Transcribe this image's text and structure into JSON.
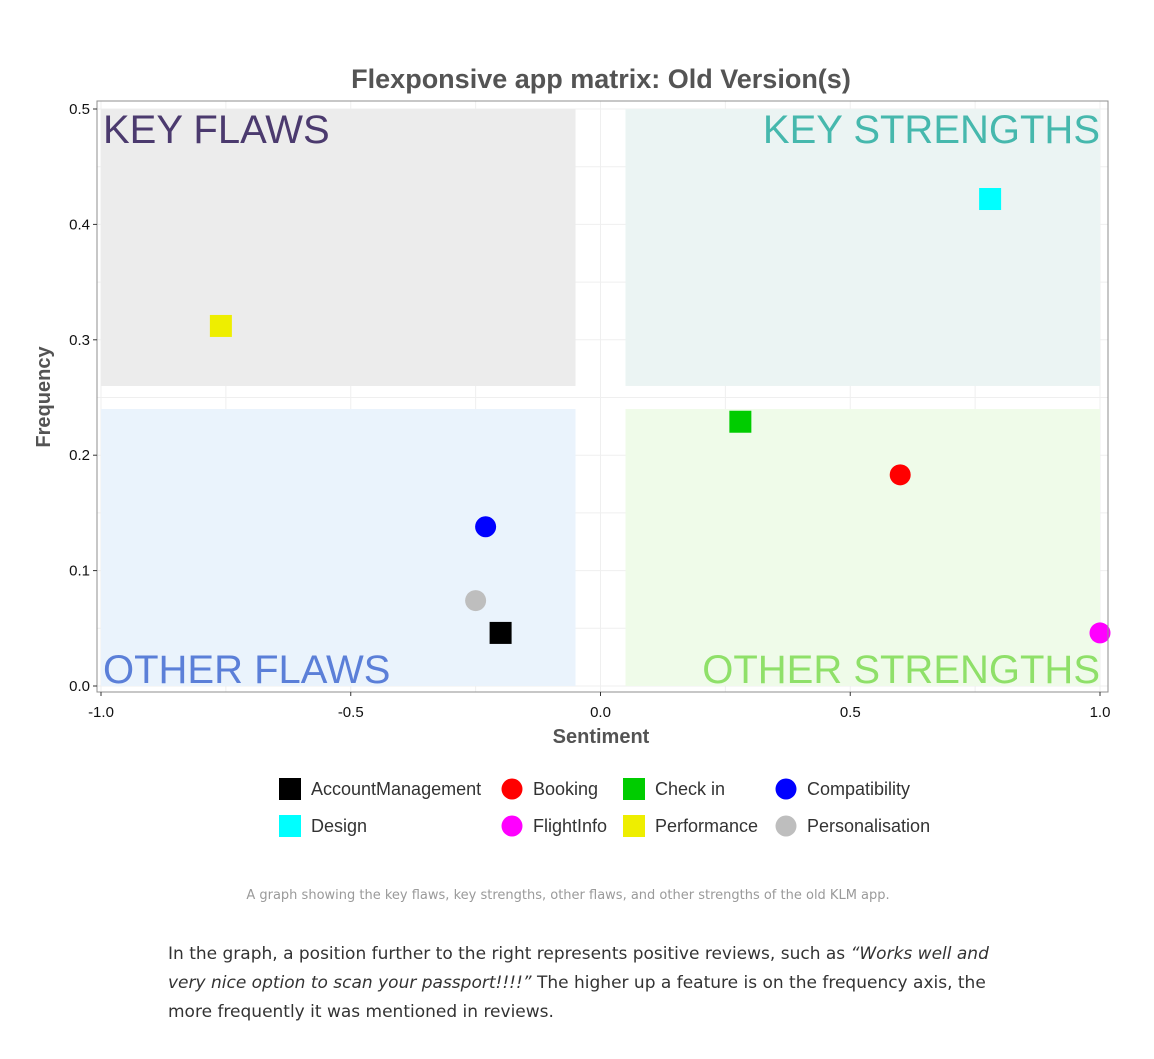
{
  "chart_data": {
    "type": "scatter",
    "title": "Flexponsive app matrix: Old Version(s)",
    "xlabel": "Sentiment",
    "ylabel": "Frequency",
    "xlim": [
      -1.0,
      1.0
    ],
    "ylim": [
      0.0,
      0.5
    ],
    "xticks": [
      "-1.0",
      "-0.5",
      "0.0",
      "0.5",
      "1.0"
    ],
    "yticks": [
      "0.0",
      "0.1",
      "0.2",
      "0.3",
      "0.4",
      "0.5"
    ],
    "grid": true,
    "legend_position": "bottom",
    "quadrants": [
      {
        "label": "KEY FLAWS",
        "x": [
          -1.0,
          -0.05
        ],
        "y": [
          0.26,
          0.5
        ],
        "fill": "#ececec",
        "text_color": "#4b3a6e",
        "anchor": "top-left"
      },
      {
        "label": "KEY STRENGTHS",
        "x": [
          0.05,
          1.0
        ],
        "y": [
          0.26,
          0.5
        ],
        "fill": "#ebf4f3",
        "text_color": "#46b8ad",
        "anchor": "top-right"
      },
      {
        "label": "OTHER FLAWS",
        "x": [
          -1.0,
          -0.05
        ],
        "y": [
          0.0,
          0.24
        ],
        "fill": "#eaf3fc",
        "text_color": "#5b7fd8",
        "anchor": "bottom-left"
      },
      {
        "label": "OTHER STRENGTHS",
        "x": [
          0.05,
          1.0
        ],
        "y": [
          0.0,
          0.24
        ],
        "fill": "#effbe9",
        "text_color": "#8fe069",
        "anchor": "bottom-right"
      }
    ],
    "series": [
      {
        "name": "AccountManagement",
        "shape": "square",
        "color": "#000000",
        "x": -0.2,
        "y": 0.046
      },
      {
        "name": "Booking",
        "shape": "circle",
        "color": "#ff0000",
        "x": 0.6,
        "y": 0.183
      },
      {
        "name": "Check in",
        "shape": "square",
        "color": "#00cc00",
        "x": 0.28,
        "y": 0.229
      },
      {
        "name": "Compatibility",
        "shape": "circle",
        "color": "#0000ff",
        "x": -0.23,
        "y": 0.138
      },
      {
        "name": "Design",
        "shape": "square",
        "color": "#00ffff",
        "x": 0.78,
        "y": 0.422
      },
      {
        "name": "FlightInfo",
        "shape": "circle",
        "color": "#ff00ff",
        "x": 1.0,
        "y": 0.046
      },
      {
        "name": "Performance",
        "shape": "square",
        "color": "#eeee00",
        "x": -0.76,
        "y": 0.312
      },
      {
        "name": "Personalisation",
        "shape": "circle",
        "color": "#bebebe",
        "x": -0.25,
        "y": 0.074
      }
    ]
  },
  "caption": "A graph showing the key flaws, key strengths, other flaws, and other strengths of the old KLM app.",
  "body": {
    "part1": "In the graph, a position further to the right represents positive reviews, such as ",
    "quote": "“Works well and very nice option to scan your passport!!!!”",
    "part2": " The higher up a feature is on the frequency axis, the more frequently it was mentioned in reviews."
  }
}
